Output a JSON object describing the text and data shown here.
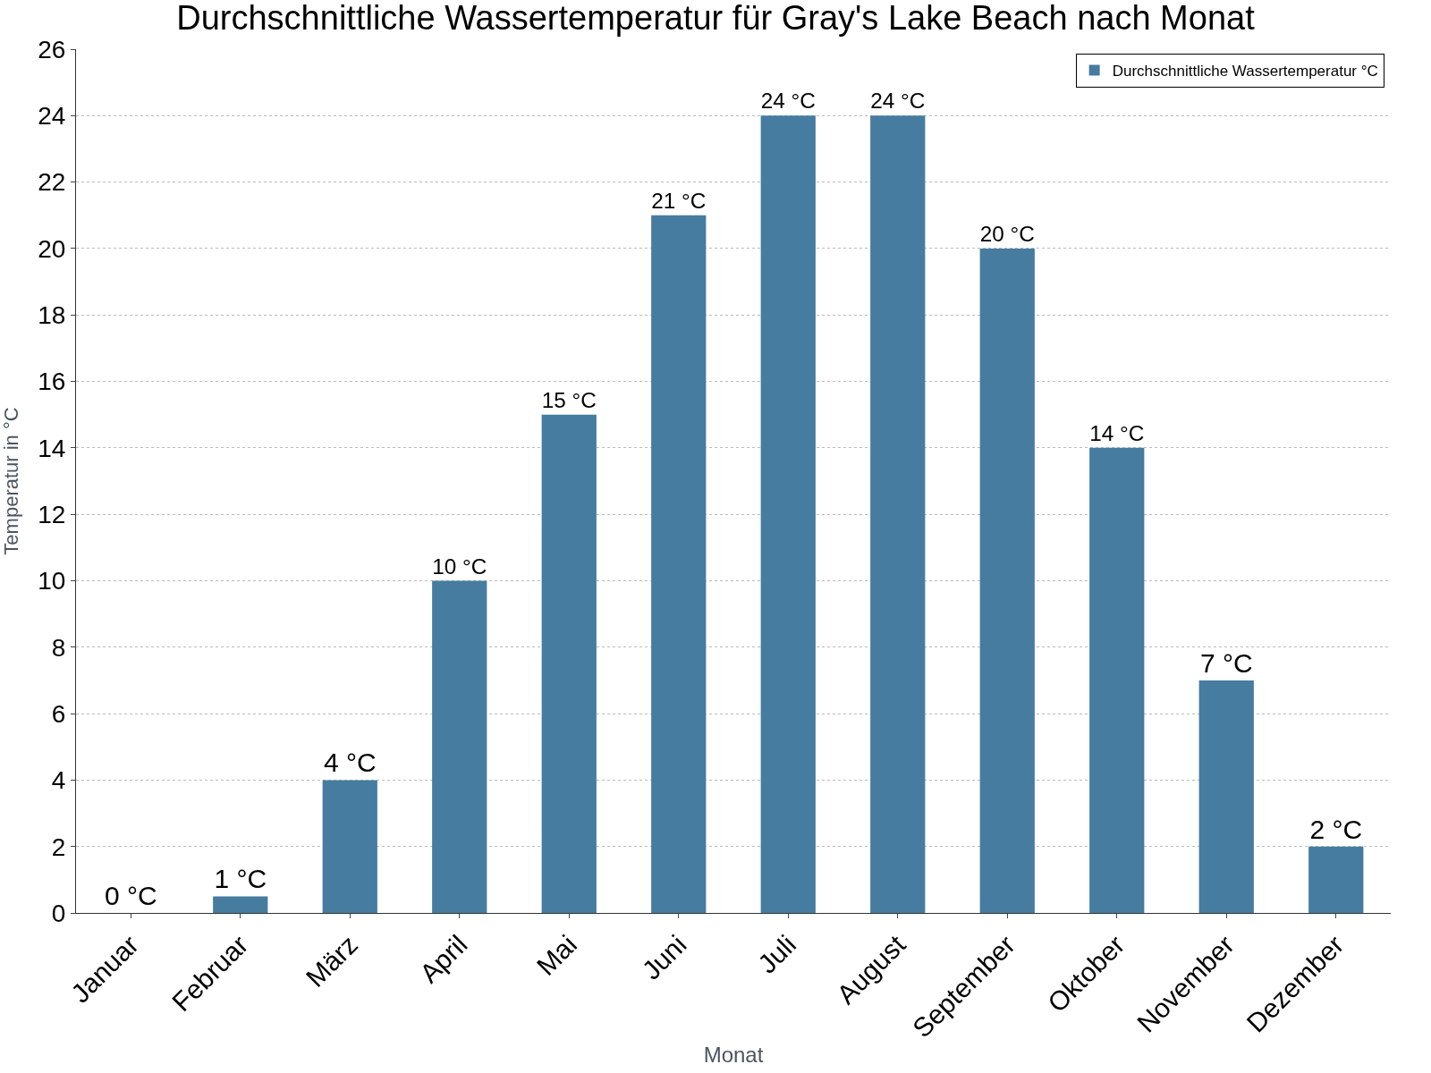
{
  "chart_data": {
    "type": "bar",
    "title": "Durchschnittliche Wassertemperatur für Gray's Lake Beach nach Monat",
    "xlabel": "Monat",
    "ylabel": "Temperatur in °C",
    "categories": [
      "Januar",
      "Februar",
      "März",
      "April",
      "Mai",
      "Juni",
      "Juli",
      "August",
      "September",
      "Oktober",
      "November",
      "Dezember"
    ],
    "series": [
      {
        "name": "Durchschnittliche Wassertemperatur °C",
        "color": "#467ca0",
        "values": [
          0,
          0.5,
          4,
          10,
          15,
          21,
          24,
          24,
          20,
          14,
          7,
          2
        ],
        "value_labels": [
          "0 °C",
          "1 °C",
          "4 °C",
          "10 °C",
          "15 °C",
          "21 °C",
          "24 °C",
          "24 °C",
          "20 °C",
          "14 °C",
          "7 °C",
          "2 °C"
        ]
      }
    ],
    "ylim": [
      0,
      26
    ],
    "yticks": [
      0,
      2,
      4,
      6,
      8,
      10,
      12,
      14,
      16,
      18,
      20,
      22,
      24,
      26
    ],
    "grid": "y",
    "legend": "top right"
  }
}
